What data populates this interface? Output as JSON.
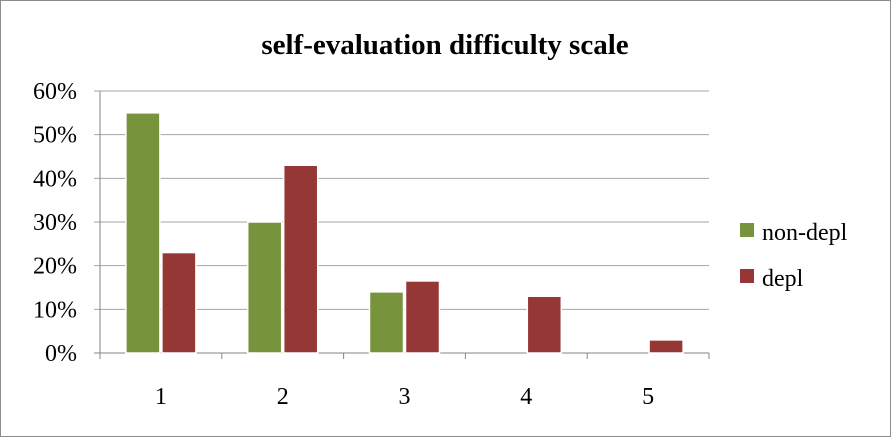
{
  "chart_data": {
    "type": "bar",
    "title": "self-evaluation difficulty scale",
    "xlabel": "",
    "ylabel": "",
    "categories": [
      "1",
      "2",
      "3",
      "4",
      "5"
    ],
    "ylim": [
      0,
      60
    ],
    "y_ticks": [
      "0%",
      "10%",
      "20%",
      "30%",
      "40%",
      "50%",
      "60%"
    ],
    "grid": true,
    "legend_position": "right",
    "series": [
      {
        "name": "non-depl",
        "color": "#77933c",
        "values": [
          55,
          30,
          14,
          0,
          0
        ]
      },
      {
        "name": "depl",
        "color": "#953735",
        "values": [
          23,
          43,
          16.5,
          13,
          3
        ]
      }
    ]
  }
}
